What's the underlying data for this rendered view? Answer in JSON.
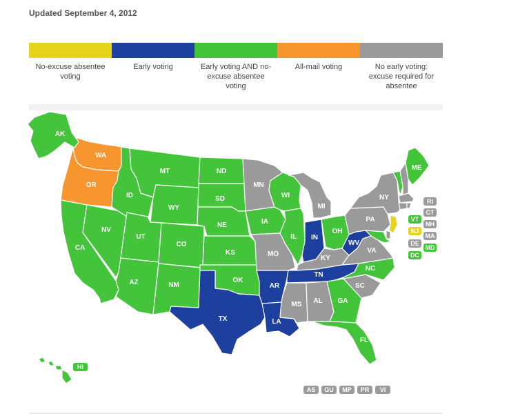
{
  "updated": "Updated September 4, 2012",
  "colors": {
    "noexcuse": "#e6d41c",
    "early": "#1d3f9e",
    "both": "#43c43a",
    "allmail": "#f7962f",
    "none": "#9a9a9a"
  },
  "legend": [
    {
      "key": "noexcuse",
      "label": "No-excuse absentee voting"
    },
    {
      "key": "early",
      "label": "Early voting"
    },
    {
      "key": "both",
      "label": "Early voting AND no-excuse absentee voting"
    },
    {
      "key": "allmail",
      "label": "All-mail voting"
    },
    {
      "key": "none",
      "label": "No early voting: excuse required for absentee"
    }
  ],
  "states": {
    "WA": {
      "cat": "allmail"
    },
    "OR": {
      "cat": "allmail"
    },
    "CA": {
      "cat": "both"
    },
    "NV": {
      "cat": "both"
    },
    "ID": {
      "cat": "both"
    },
    "MT": {
      "cat": "both"
    },
    "WY": {
      "cat": "both"
    },
    "UT": {
      "cat": "both"
    },
    "CO": {
      "cat": "both"
    },
    "AZ": {
      "cat": "both"
    },
    "NM": {
      "cat": "both"
    },
    "ND": {
      "cat": "both"
    },
    "SD": {
      "cat": "both"
    },
    "NE": {
      "cat": "both"
    },
    "KS": {
      "cat": "both"
    },
    "OK": {
      "cat": "both"
    },
    "IA": {
      "cat": "both"
    },
    "WI": {
      "cat": "both"
    },
    "IL": {
      "cat": "both"
    },
    "OH": {
      "cat": "both"
    },
    "GA": {
      "cat": "both"
    },
    "NC": {
      "cat": "both"
    },
    "FL": {
      "cat": "both"
    },
    "ME": {
      "cat": "both"
    },
    "VT": {
      "cat": "both"
    },
    "MD": {
      "cat": "both"
    },
    "DC": {
      "cat": "both"
    },
    "AK": {
      "cat": "both"
    },
    "HI": {
      "cat": "both"
    },
    "TX": {
      "cat": "early"
    },
    "AR": {
      "cat": "early"
    },
    "LA": {
      "cat": "early"
    },
    "TN": {
      "cat": "early"
    },
    "IN": {
      "cat": "early"
    },
    "WV": {
      "cat": "early"
    },
    "NJ": {
      "cat": "noexcuse"
    },
    "MN": {
      "cat": "none"
    },
    "MO": {
      "cat": "none"
    },
    "MI": {
      "cat": "none"
    },
    "KY": {
      "cat": "none"
    },
    "MS": {
      "cat": "none"
    },
    "AL": {
      "cat": "none"
    },
    "SC": {
      "cat": "none"
    },
    "VA": {
      "cat": "none"
    },
    "PA": {
      "cat": "none"
    },
    "NY": {
      "cat": "none"
    },
    "NH": {
      "cat": "none"
    },
    "MA": {
      "cat": "none"
    },
    "CT": {
      "cat": "none"
    },
    "RI": {
      "cat": "none"
    },
    "DE": {
      "cat": "none"
    }
  },
  "chips": [
    {
      "id": "RI",
      "cat": "none"
    },
    {
      "id": "CT",
      "cat": "none"
    },
    {
      "id": "VT",
      "cat": "both"
    },
    {
      "id": "NH",
      "cat": "none"
    },
    {
      "id": "NJ",
      "cat": "noexcuse"
    },
    {
      "id": "MA",
      "cat": "none"
    },
    {
      "id": "DE",
      "cat": "none"
    },
    {
      "id": "MD",
      "cat": "both"
    },
    {
      "id": "DC",
      "cat": "both"
    }
  ],
  "territories": [
    {
      "id": "AS",
      "cat": "none"
    },
    {
      "id": "GU",
      "cat": "none"
    },
    {
      "id": "MP",
      "cat": "none"
    },
    {
      "id": "PR",
      "cat": "none"
    },
    {
      "id": "VI",
      "cat": "none"
    }
  ],
  "map_labels": [
    "AK",
    "WA",
    "OR",
    "CA",
    "NV",
    "ID",
    "MT",
    "WY",
    "UT",
    "CO",
    "AZ",
    "NM",
    "ND",
    "SD",
    "NE",
    "KS",
    "OK",
    "TX",
    "MN",
    "IA",
    "MO",
    "AR",
    "LA",
    "WI",
    "IL",
    "MI",
    "IN",
    "OH",
    "KY",
    "TN",
    "MS",
    "AL",
    "GA",
    "FL",
    "SC",
    "NC",
    "VA",
    "WV",
    "PA",
    "NY",
    "ME",
    "HI"
  ]
}
